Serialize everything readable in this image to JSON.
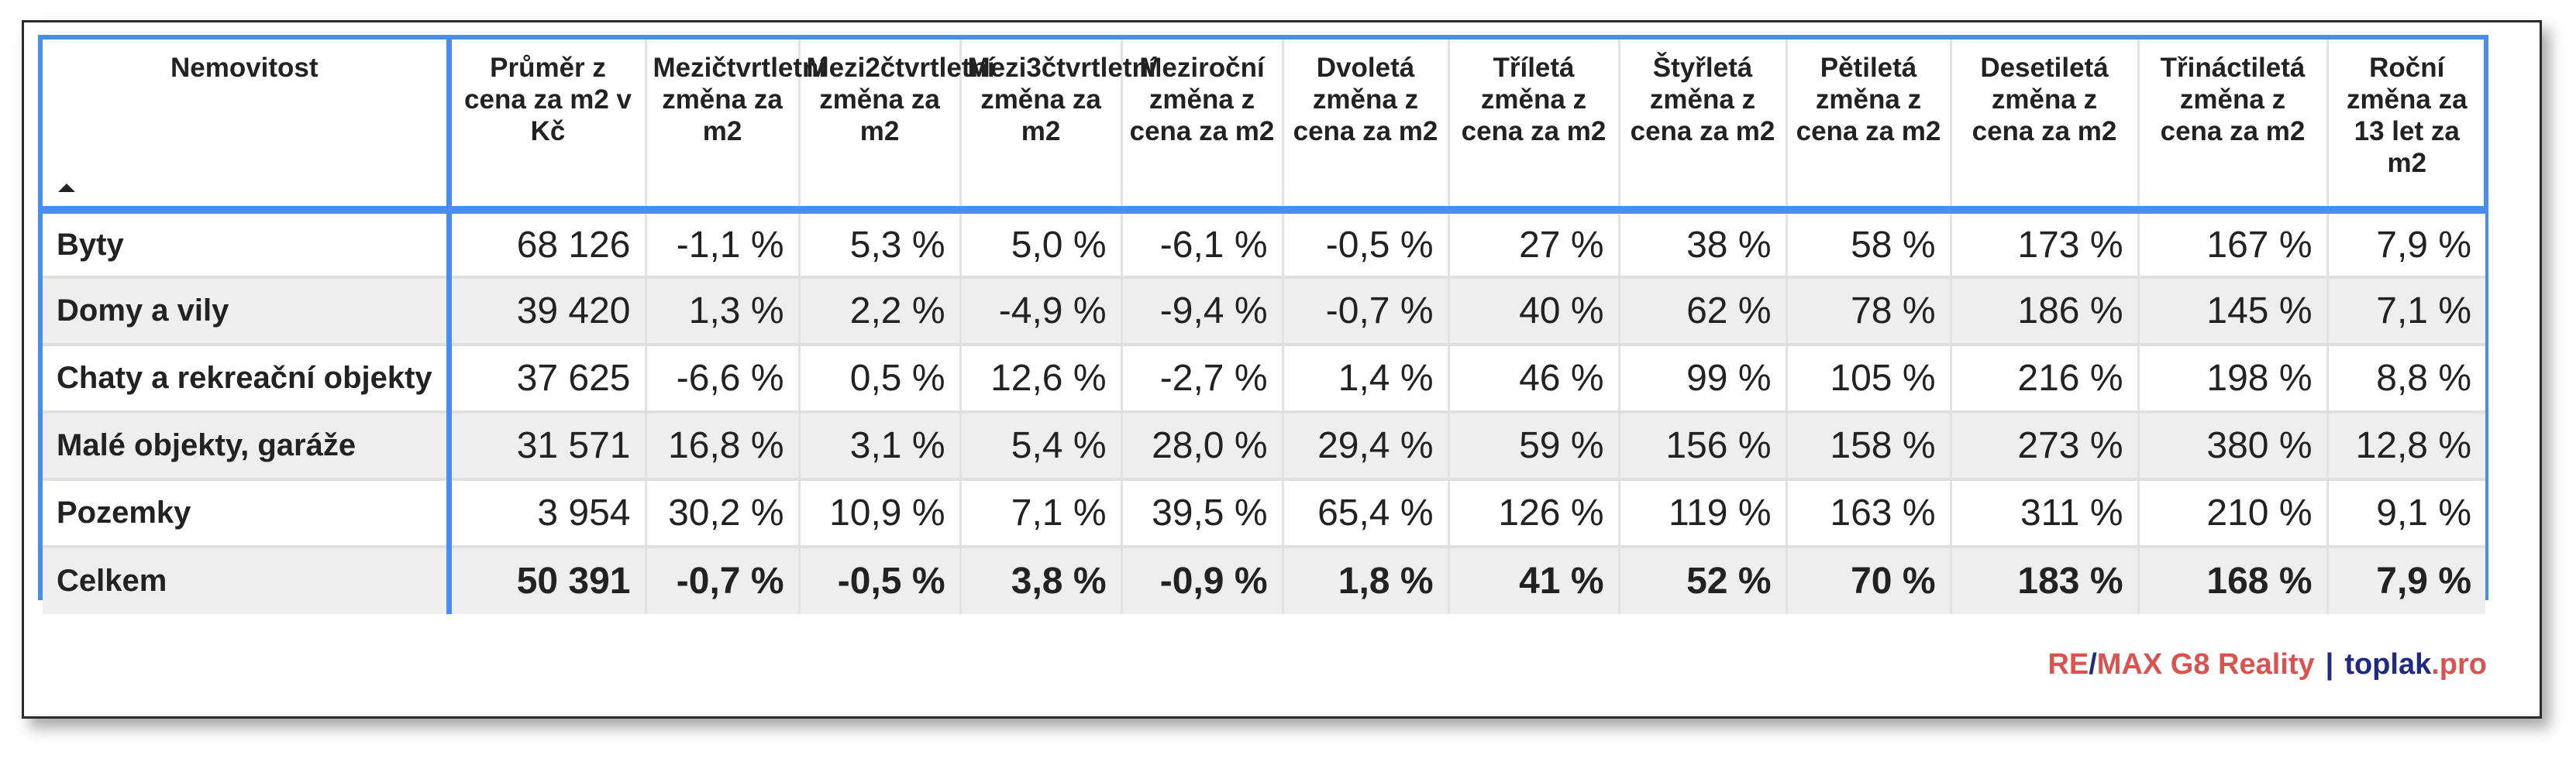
{
  "chart_data": {
    "type": "table",
    "columns": [
      "Nemovitost",
      "Průměr z cena za m2 v Kč",
      "Mezičtvrtletní změna za m2",
      "Mezi2čtvrtletní změna za m2",
      "Mezi3čtvrtletní změna za m2",
      "Meziroční změna z cena za m2",
      "Dvoletá změna z cena za m2",
      "Tříletá změna z cena za m2",
      "Štyřletá změna z cena za m2",
      "Pětiletá změna z cena za m2",
      "Desetiletá změna z cena za m2",
      "Třináctiletá změna z cena za m2",
      "Roční změna za 13 let za m2"
    ],
    "sorted_column": "Nemovitost",
    "sort_direction": "ascending",
    "rows": [
      [
        "Byty",
        "68 126",
        "-1,1 %",
        "5,3 %",
        "5,0 %",
        "-6,1 %",
        "-0,5 %",
        "27 %",
        "38 %",
        "58 %",
        "173 %",
        "167 %",
        "7,9 %"
      ],
      [
        "Domy a vily",
        "39 420",
        "1,3 %",
        "2,2 %",
        "-4,9 %",
        "-9,4 %",
        "-0,7 %",
        "40 %",
        "62 %",
        "78 %",
        "186 %",
        "145 %",
        "7,1 %"
      ],
      [
        "Chaty a rekreační objekty",
        "37 625",
        "-6,6 %",
        "0,5 %",
        "12,6 %",
        "-2,7 %",
        "1,4 %",
        "46 %",
        "99 %",
        "105 %",
        "216 %",
        "198 %",
        "8,8 %"
      ],
      [
        "Malé objekty, garáže",
        "31 571",
        "16,8 %",
        "3,1 %",
        "5,4 %",
        "28,0 %",
        "29,4 %",
        "59 %",
        "156 %",
        "158 %",
        "273 %",
        "380 %",
        "12,8 %"
      ],
      [
        "Pozemky",
        "3 954",
        "30,2 %",
        "10,9 %",
        "7,1 %",
        "39,5 %",
        "65,4 %",
        "126 %",
        "119 %",
        "163 %",
        "311 %",
        "210 %",
        "9,1 %"
      ]
    ],
    "total_row": [
      "Celkem",
      "50 391",
      "-0,7 %",
      "-0,5 %",
      "3,8 %",
      "-0,9 %",
      "1,8 %",
      "41 %",
      "52 %",
      "70 %",
      "183 %",
      "168 %",
      "7,9 %"
    ]
  },
  "footer": {
    "remax_re": "RE",
    "remax_slash": "/",
    "remax_rest": "MAX G8 Reality",
    "separator": "|",
    "toplak_main": "toplak",
    "toplak_tld": ".pro"
  },
  "colors": {
    "border_accent": "#4a8df0",
    "remax_red": "#d9534f",
    "toplak_navy": "#1f2a80",
    "row_alt": "#eeeeee"
  }
}
